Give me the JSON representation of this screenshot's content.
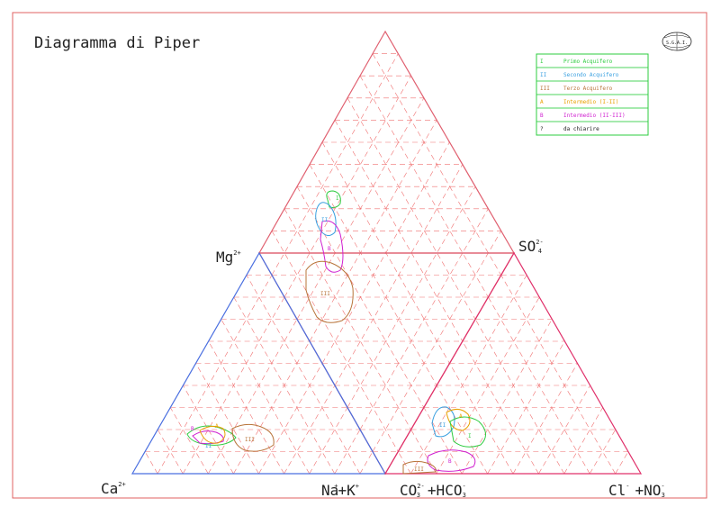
{
  "title": "Diagramma di Piper",
  "logo_text": "S.G.A.I.",
  "ions": {
    "ca": "Ca",
    "ca_charge": "2+",
    "mg": "Mg",
    "mg_charge": "2+",
    "na": "Na",
    "na_charge": "+",
    "plus_k": "+K",
    "k_charge": "+",
    "co3": "CO",
    "co3_sub": "3",
    "co3_charge": "2-",
    "plus_hco3": "+HCO",
    "hco3_sub": "3",
    "hco3_charge": "-",
    "so4": "SO",
    "so4_sub": "4",
    "so4_charge": "2-",
    "cl": "Cl",
    "cl_charge": "-",
    "plus_no3": "+NO",
    "no3_sub": "3",
    "no3_charge": "-"
  },
  "legend": [
    {
      "code": "I",
      "label": "Primo Acquifero",
      "color": "#2ecc40"
    },
    {
      "code": "II",
      "label": "Secondo Acquifero",
      "color": "#3aa0e0"
    },
    {
      "code": "III",
      "label": "Terzo Acquifero",
      "color": "#b8743a"
    },
    {
      "code": "A",
      "label": "Intermedio (I-II)",
      "color": "#e8a000"
    },
    {
      "code": "B",
      "label": "Intermedio (II-III)",
      "color": "#d020d0"
    },
    {
      "code": "?",
      "label": "da chiarire",
      "color": "#222222"
    }
  ],
  "zone_labels": {
    "diamond": [
      "I",
      "II",
      "III",
      "B"
    ],
    "cation": [
      "A",
      "B",
      "II",
      "III"
    ],
    "anion": [
      "II",
      "A",
      "I",
      "B",
      "III"
    ]
  },
  "colors": {
    "grid": "#f07070",
    "cation_outline": "#4a6fe0",
    "anion_outline": "#e0306a",
    "frame": "#e06060"
  }
}
